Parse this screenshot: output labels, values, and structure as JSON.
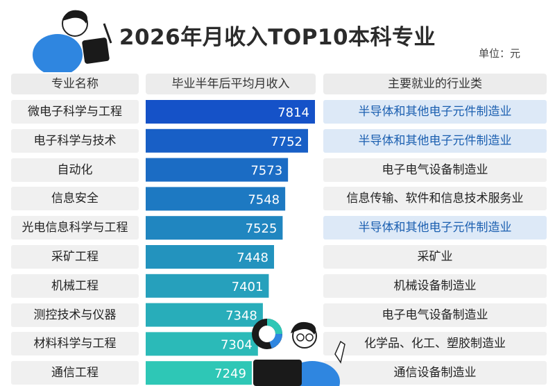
{
  "title": "2026年月收入TOP10本科专业",
  "unit_label": "单位：元",
  "headers": {
    "major": "专业名称",
    "income": "毕业半年后平均月收入",
    "industry": "主要就业的行业类"
  },
  "colors": {
    "bar_top": "#1552c8",
    "bar_bottom": "#2ec7b6",
    "highlight_text": "#1b5fb0",
    "highlight_bg": "#dde9f7"
  },
  "chart_data": {
    "type": "bar",
    "orientation": "horizontal",
    "title": "2026年月收入TOP10本科专业",
    "categories": [
      "微电子科学与工程",
      "电子科学与技术",
      "自动化",
      "信息安全",
      "光电信息科学与工程",
      "采矿工程",
      "机械工程",
      "测控技术与仪器",
      "材料科学与工程",
      "通信工程"
    ],
    "values": [
      7814,
      7752,
      7573,
      7548,
      7525,
      7448,
      7401,
      7348,
      7304,
      7249
    ],
    "industries": [
      "半导体和其他电子元件制造业",
      "半导体和其他电子元件制造业",
      "电子电气设备制造业",
      "信息传输、软件和信息技术服务业",
      "半导体和其他电子元件制造业",
      "采矿业",
      "机械设备制造业",
      "电子电气设备制造业",
      "化学品、化工、塑胶制造业",
      "通信设备制造业"
    ],
    "industry_highlight": [
      true,
      true,
      false,
      false,
      true,
      false,
      false,
      false,
      false,
      false
    ],
    "xlabel": "毕业半年后平均月收入",
    "unit": "元"
  }
}
